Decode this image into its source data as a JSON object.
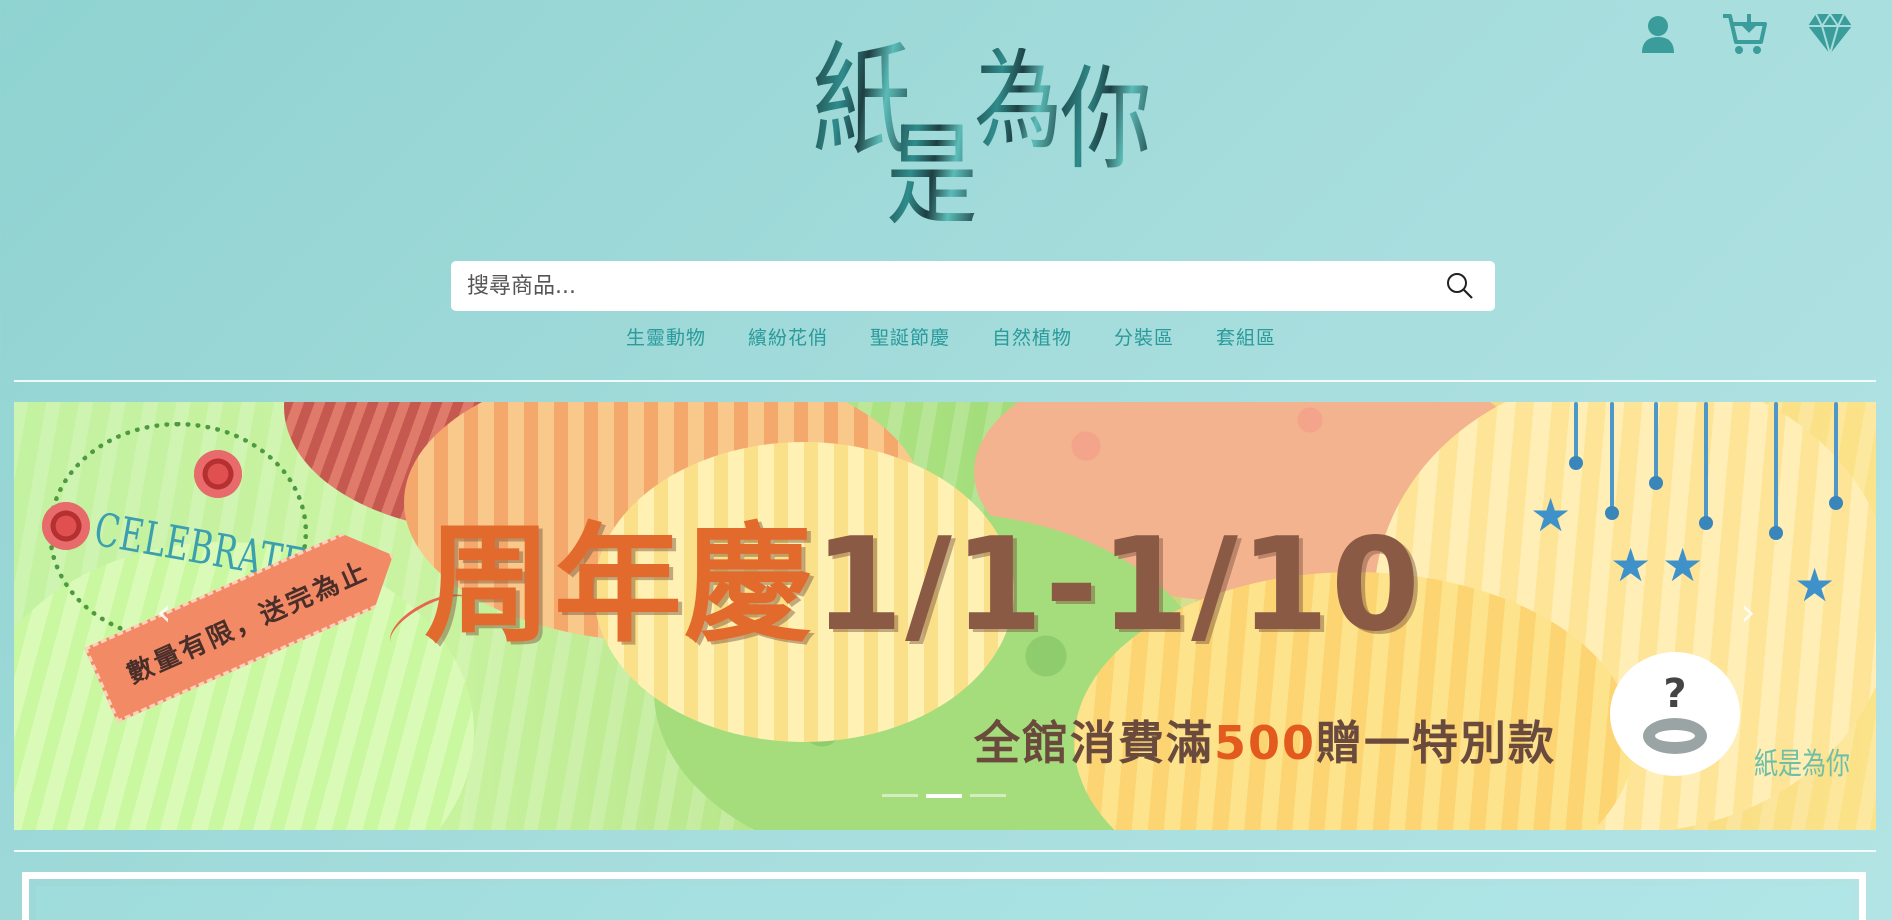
{
  "header": {
    "logo_text": "紙是為你",
    "logo_glyphs": [
      "紙",
      "是",
      "為",
      "你"
    ],
    "icons": [
      "user-icon",
      "cart-icon",
      "diamond-icon"
    ],
    "accent_color": "#3a9d9b"
  },
  "search": {
    "placeholder": "搜尋商品...",
    "value": ""
  },
  "nav": {
    "categories": [
      "生靈動物",
      "繽紛花俏",
      "聖誕節慶",
      "自然植物",
      "分裝區",
      "套組區"
    ]
  },
  "banner": {
    "headline_part1": "周年慶",
    "headline_part2": "1/1-1/10",
    "subline_part1": "全館消費滿",
    "subline_amount": "500",
    "subline_part2": "贈一特別款",
    "tag_text": "數量有限，送完為止",
    "wreath_text": "CELEBRATE",
    "watermark": "紙是為你",
    "prev_arrow": "‹",
    "next_arrow": "›",
    "carousel_slide_count": 3,
    "carousel_active_index": 1
  }
}
